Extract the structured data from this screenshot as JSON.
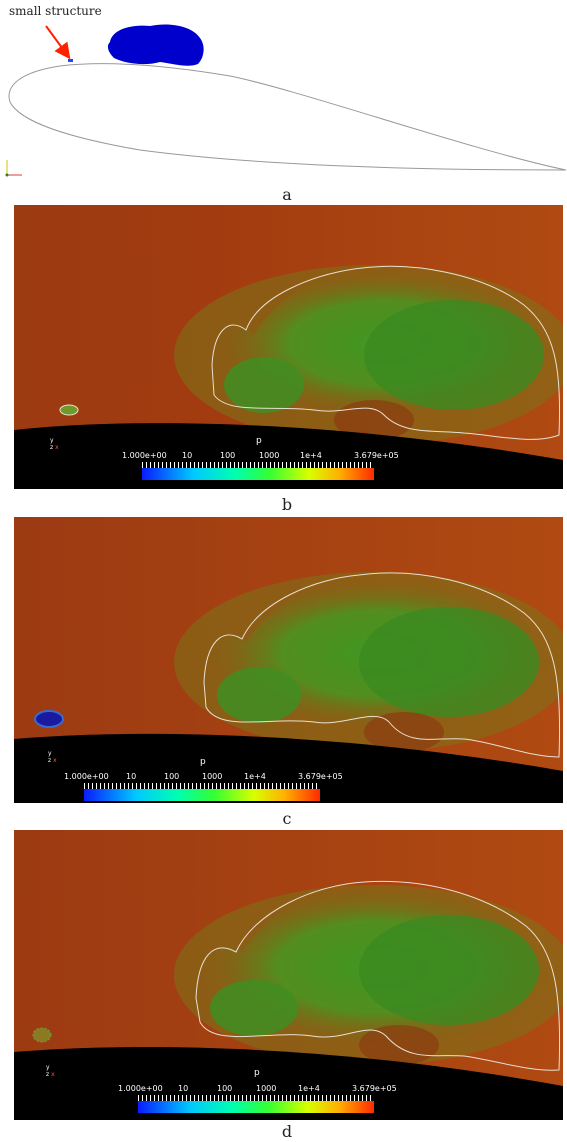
{
  "annotation": {
    "text": "small structure"
  },
  "captions": [
    "a",
    "b",
    "c",
    "d"
  ],
  "colorbar": {
    "title": "p",
    "labels": [
      "1.000e+00",
      "10",
      "100",
      "1000",
      "1e+4",
      "3.679e+05"
    ]
  },
  "axes_labels": {
    "y": "y",
    "z": "z",
    "x": "x"
  },
  "colors": {
    "background_field": "#a33a10",
    "vortex_field": "#3f8a1f",
    "blob": "#0000cc",
    "arrow": "#ff2200",
    "airfoil_outline": "#999999"
  }
}
